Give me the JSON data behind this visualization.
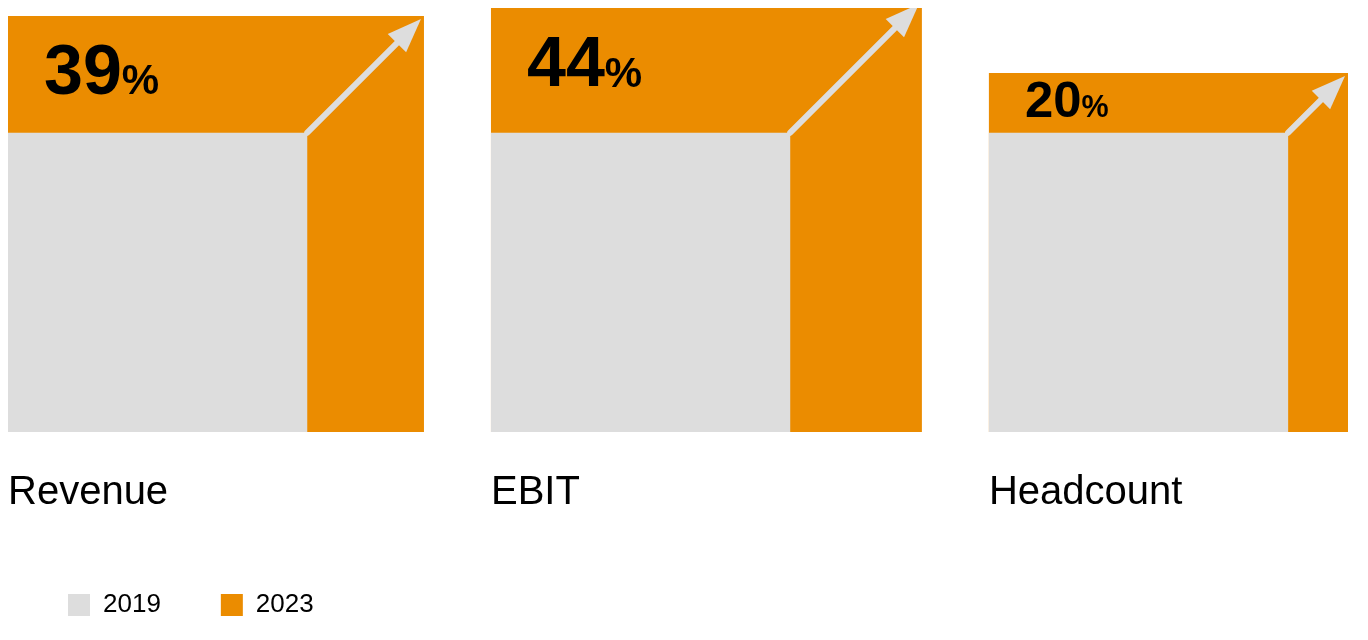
{
  "chart_data": {
    "type": "other",
    "categories": [
      "Revenue",
      "EBIT",
      "Headcount"
    ],
    "series": [
      {
        "name": "2019",
        "color": "#dddddd",
        "values": [
          null,
          null,
          null
        ]
      },
      {
        "name": "2023",
        "color": "#eb8c00",
        "values": [
          39,
          44,
          20
        ],
        "value_labels": [
          "39%",
          "44%",
          "20%"
        ]
      }
    ],
    "legend": "bottom left"
  }
}
